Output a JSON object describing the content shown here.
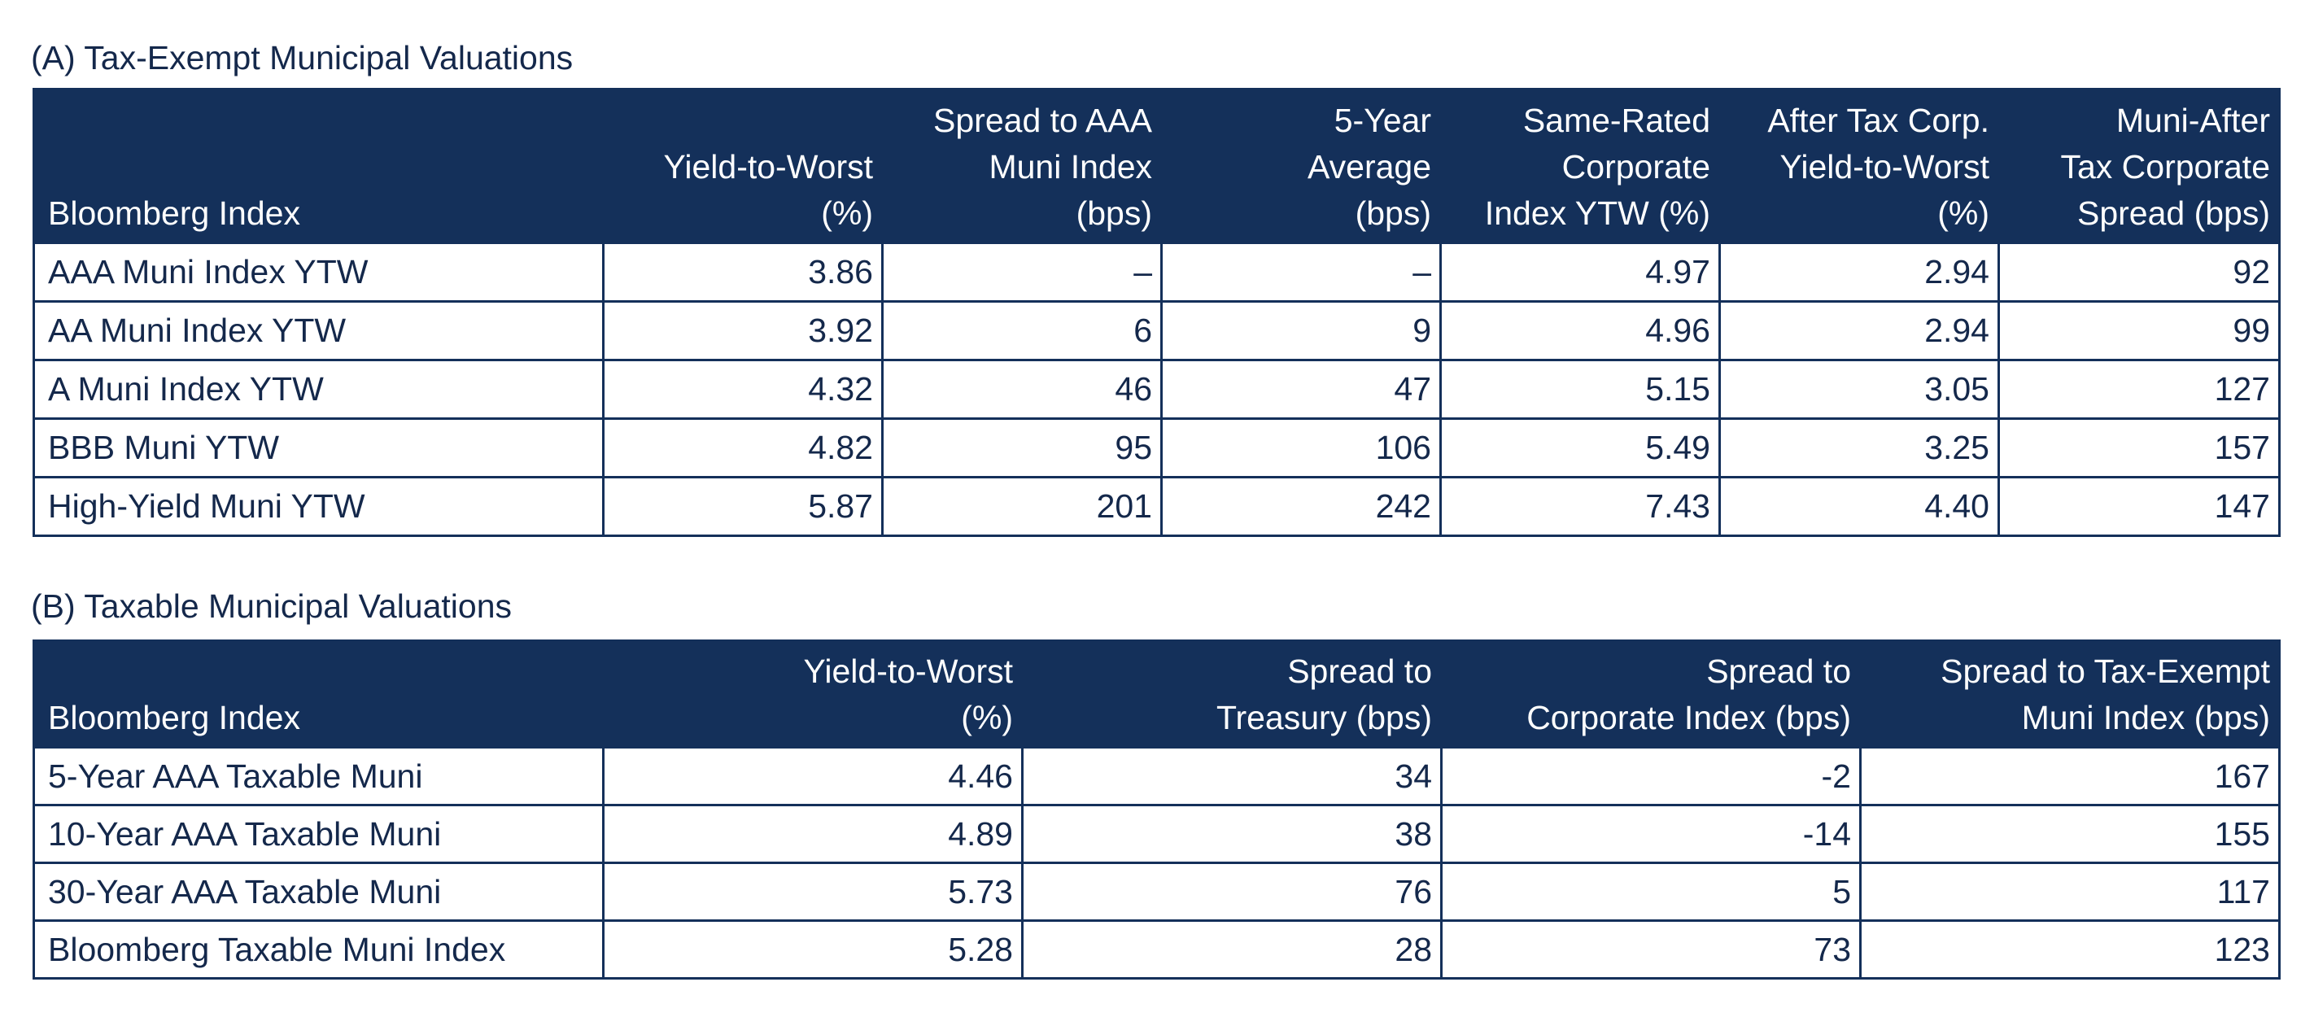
{
  "section_a": {
    "title": "(A) Tax-Exempt Municipal Valuations",
    "headers": [
      [
        "Bloomberg Index"
      ],
      [
        "Yield-to-Worst",
        "(%)"
      ],
      [
        "Spread to AAA",
        "Muni Index",
        "(bps)"
      ],
      [
        "5-Year",
        "Average",
        "(bps)"
      ],
      [
        "Same-Rated",
        "Corporate",
        "Index YTW (%)"
      ],
      [
        "After Tax Corp.",
        "Yield-to-Worst",
        "(%)"
      ],
      [
        "Muni-After",
        "Tax Corporate",
        "Spread (bps)"
      ]
    ],
    "rows": [
      [
        "AAA Muni Index YTW",
        "3.86",
        "–",
        "–",
        "4.97",
        "2.94",
        "92"
      ],
      [
        "AA Muni Index YTW",
        "3.92",
        "6",
        "9",
        "4.96",
        "2.94",
        "99"
      ],
      [
        "A Muni Index YTW",
        "4.32",
        "46",
        "47",
        "5.15",
        "3.05",
        "127"
      ],
      [
        "BBB Muni YTW",
        "4.82",
        "95",
        "106",
        "5.49",
        "3.25",
        "157"
      ],
      [
        "High-Yield Muni YTW",
        "5.87",
        "201",
        "242",
        "7.43",
        "4.40",
        "147"
      ]
    ]
  },
  "section_b": {
    "title": "(B) Taxable Municipal Valuations",
    "headers": [
      [
        "Bloomberg Index"
      ],
      [
        "Yield-to-Worst",
        "(%)"
      ],
      [
        "Spread to",
        "Treasury (bps)"
      ],
      [
        "Spread to",
        "Corporate Index (bps)"
      ],
      [
        "Spread to Tax-Exempt",
        "Muni Index (bps)"
      ]
    ],
    "rows": [
      [
        "5-Year AAA Taxable Muni",
        "4.46",
        "34",
        "-2",
        "167"
      ],
      [
        "10-Year AAA Taxable Muni",
        "4.89",
        "38",
        "-14",
        "155"
      ],
      [
        "30-Year AAA Taxable Muni",
        "5.73",
        "76",
        "5",
        "117"
      ],
      [
        "Bloomberg Taxable Muni Index",
        "5.28",
        "28",
        "73",
        "123"
      ]
    ]
  },
  "colors": {
    "header_background": "#14305a",
    "header_text": "#ffffff",
    "body_text": "#14284b",
    "border": "#14305a"
  }
}
